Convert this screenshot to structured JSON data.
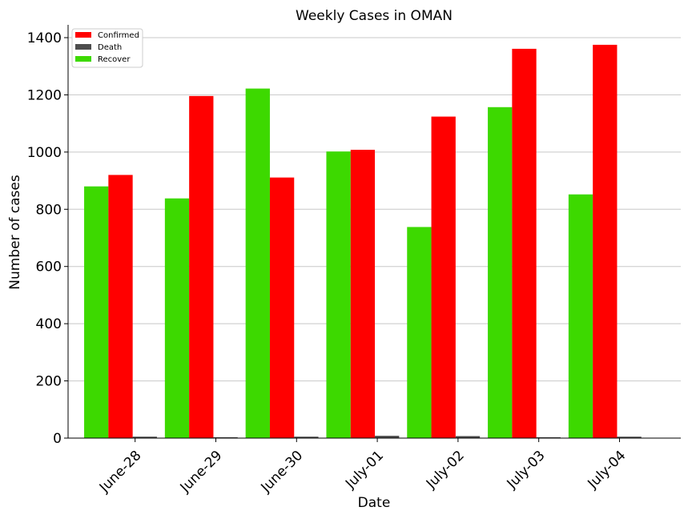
{
  "chart_data": {
    "type": "bar",
    "title": "Weekly Cases in OMAN",
    "xlabel": "Date",
    "ylabel": "Number of cases",
    "categories": [
      "June-28",
      "June-29",
      "June-30",
      "July-01",
      "July-02",
      "July-03",
      "July-04"
    ],
    "series": [
      {
        "name": "Recover",
        "color": "#3dd900",
        "values": [
          880,
          838,
          1222,
          1002,
          738,
          1157,
          852
        ]
      },
      {
        "name": "Confirmed",
        "color": "#ff0000",
        "values": [
          920,
          1196,
          911,
          1008,
          1124,
          1361,
          1375
        ]
      },
      {
        "name": "Death",
        "color": "#4d4d4d",
        "values": [
          5,
          3,
          5,
          8,
          7,
          3,
          5
        ]
      }
    ],
    "legend_order": [
      "Confirmed",
      "Death",
      "Recover"
    ],
    "legend_position": "top-left",
    "ylim": [
      0,
      1450
    ],
    "yticks": [
      0,
      200,
      400,
      600,
      800,
      1000,
      1200,
      1400
    ],
    "grid": "horizontal"
  }
}
